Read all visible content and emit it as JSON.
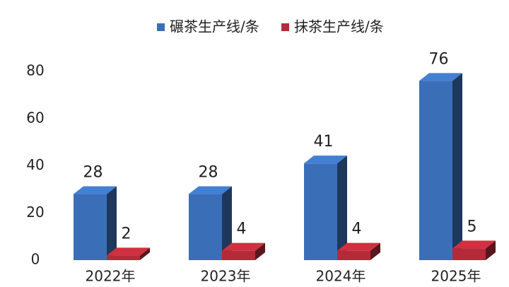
{
  "chart_data": {
    "type": "bar3d",
    "categories": [
      "2022年",
      "2023年",
      "2024年",
      "2025年"
    ],
    "series": [
      {
        "name": "碾茶生产线/条",
        "color": "#3a6fb8",
        "values": [
          28,
          28,
          41,
          76
        ]
      },
      {
        "name": "抹茶生产线/条",
        "color": "#b52a38",
        "values": [
          2,
          4,
          4,
          5
        ]
      }
    ],
    "ylim": [
      0,
      80
    ],
    "yticks": [
      0,
      20,
      40,
      60,
      80
    ],
    "grid": false,
    "legend": "top"
  }
}
